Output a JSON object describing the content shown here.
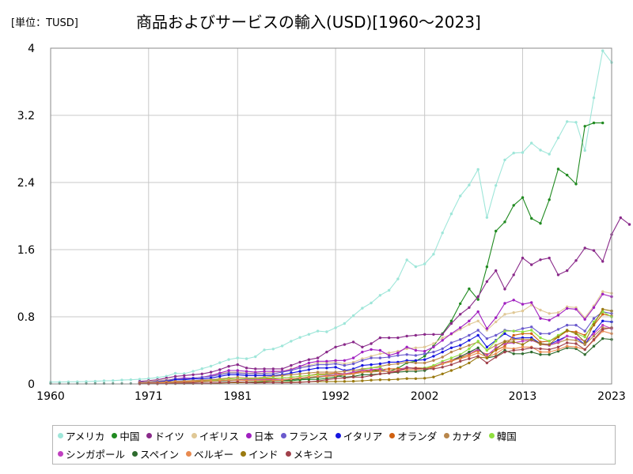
{
  "unit_label": "[単位：TUSD]",
  "chart_data": {
    "type": "line",
    "title": "商品およびサービスの輸入(USD)[1960～2023]",
    "xlabel": "",
    "ylabel": "",
    "xlim": [
      1960,
      2023
    ],
    "ylim": [
      0,
      4
    ],
    "x_ticks": [
      "1960",
      "1971",
      "1981",
      "1992",
      "2002",
      "2013",
      "2023"
    ],
    "y_ticks": [
      "0",
      "0.8",
      "1.6",
      "2.4",
      "3.2",
      "4"
    ],
    "grid": true,
    "legend_position": "bottom",
    "series": [
      {
        "name": "アメリカ",
        "color": "#9ee6d9",
        "start": 1960,
        "values": [
          0.023,
          0.023,
          0.025,
          0.026,
          0.028,
          0.032,
          0.038,
          0.04,
          0.046,
          0.05,
          0.056,
          0.064,
          0.076,
          0.092,
          0.127,
          0.122,
          0.151,
          0.182,
          0.212,
          0.253,
          0.291,
          0.31,
          0.3,
          0.325,
          0.406,
          0.416,
          0.453,
          0.509,
          0.554,
          0.591,
          0.63,
          0.621,
          0.669,
          0.72,
          0.813,
          0.903,
          0.965,
          1.056,
          1.115,
          1.251,
          1.478,
          1.397,
          1.43,
          1.545,
          1.8,
          2.026,
          2.239,
          2.37,
          2.555,
          1.983,
          2.364,
          2.669,
          2.751,
          2.757,
          2.87,
          2.786,
          2.738,
          2.931,
          3.126,
          3.117,
          2.781,
          3.409,
          3.97,
          3.83
        ]
      },
      {
        "name": "中国",
        "color": "#208a20",
        "start": 1982,
        "values": [
          0.02,
          0.023,
          0.028,
          0.036,
          0.04,
          0.038,
          0.049,
          0.054,
          0.055,
          0.066,
          0.083,
          0.11,
          0.12,
          0.138,
          0.15,
          0.159,
          0.15,
          0.187,
          0.25,
          0.272,
          0.331,
          0.45,
          0.6,
          0.75,
          0.956,
          1.133,
          1.006,
          1.396,
          1.821,
          1.93,
          2.128,
          2.22,
          1.972,
          1.913,
          2.195,
          2.56,
          2.488,
          2.382,
          3.07,
          3.11,
          3.11
        ]
      },
      {
        "name": "ドイツ",
        "color": "#8a2a8a",
        "start": 1970,
        "values": [
          0.03,
          0.04,
          0.05,
          0.07,
          0.09,
          0.1,
          0.11,
          0.12,
          0.14,
          0.17,
          0.21,
          0.23,
          0.19,
          0.18,
          0.18,
          0.18,
          0.18,
          0.22,
          0.26,
          0.29,
          0.31,
          0.38,
          0.44,
          0.47,
          0.5,
          0.44,
          0.48,
          0.55,
          0.55,
          0.55,
          0.57,
          0.58,
          0.59,
          0.59,
          0.59,
          0.72,
          0.83,
          0.91,
          1.04,
          1.22,
          1.35,
          1.13,
          1.3,
          1.5,
          1.42,
          1.48,
          1.5,
          1.3,
          1.35,
          1.47,
          1.62,
          1.59,
          1.46,
          1.78,
          1.98,
          1.9
        ]
      },
      {
        "name": "イギリス",
        "color": "#e0c896",
        "start": 1970,
        "values": [
          0.02,
          0.03,
          0.04,
          0.05,
          0.06,
          0.07,
          0.07,
          0.08,
          0.1,
          0.12,
          0.14,
          0.14,
          0.13,
          0.13,
          0.13,
          0.14,
          0.15,
          0.18,
          0.21,
          0.22,
          0.25,
          0.25,
          0.26,
          0.24,
          0.26,
          0.3,
          0.33,
          0.36,
          0.37,
          0.39,
          0.42,
          0.43,
          0.44,
          0.48,
          0.55,
          0.59,
          0.65,
          0.71,
          0.75,
          0.64,
          0.74,
          0.83,
          0.85,
          0.87,
          0.94,
          0.88,
          0.84,
          0.85,
          0.92,
          0.91,
          0.79,
          0.93,
          1.1,
          1.08
        ]
      },
      {
        "name": "日本",
        "color": "#a020c0",
        "start": 1970,
        "values": [
          0.02,
          0.02,
          0.03,
          0.04,
          0.06,
          0.07,
          0.07,
          0.08,
          0.1,
          0.13,
          0.16,
          0.16,
          0.15,
          0.14,
          0.15,
          0.15,
          0.15,
          0.17,
          0.21,
          0.25,
          0.27,
          0.27,
          0.28,
          0.28,
          0.31,
          0.38,
          0.41,
          0.4,
          0.34,
          0.37,
          0.44,
          0.4,
          0.39,
          0.44,
          0.52,
          0.6,
          0.67,
          0.75,
          0.86,
          0.66,
          0.79,
          0.96,
          1.0,
          0.95,
          0.97,
          0.78,
          0.76,
          0.82,
          0.9,
          0.89,
          0.77,
          0.91,
          1.07,
          1.04
        ]
      },
      {
        "name": "フランス",
        "color": "#6a5acd",
        "start": 1970,
        "values": [
          0.02,
          0.02,
          0.03,
          0.04,
          0.06,
          0.06,
          0.07,
          0.08,
          0.09,
          0.11,
          0.13,
          0.13,
          0.12,
          0.12,
          0.12,
          0.12,
          0.14,
          0.16,
          0.19,
          0.21,
          0.23,
          0.23,
          0.24,
          0.22,
          0.24,
          0.28,
          0.31,
          0.31,
          0.32,
          0.34,
          0.35,
          0.34,
          0.36,
          0.38,
          0.42,
          0.49,
          0.53,
          0.58,
          0.64,
          0.54,
          0.58,
          0.64,
          0.63,
          0.66,
          0.68,
          0.6,
          0.6,
          0.65,
          0.7,
          0.7,
          0.63,
          0.78,
          0.86,
          0.84
        ]
      },
      {
        "name": "イタリア",
        "color": "#1515e0",
        "start": 1970,
        "values": [
          0.015,
          0.018,
          0.022,
          0.03,
          0.05,
          0.05,
          0.06,
          0.06,
          0.07,
          0.09,
          0.11,
          0.11,
          0.1,
          0.1,
          0.1,
          0.1,
          0.11,
          0.13,
          0.15,
          0.17,
          0.19,
          0.19,
          0.2,
          0.16,
          0.18,
          0.22,
          0.23,
          0.24,
          0.26,
          0.26,
          0.28,
          0.28,
          0.29,
          0.33,
          0.38,
          0.43,
          0.46,
          0.52,
          0.58,
          0.44,
          0.52,
          0.6,
          0.54,
          0.55,
          0.55,
          0.48,
          0.47,
          0.52,
          0.57,
          0.55,
          0.47,
          0.62,
          0.75,
          0.74
        ]
      },
      {
        "name": "オランダ",
        "color": "#d06010",
        "start": 1970,
        "values": [
          0.01,
          0.012,
          0.015,
          0.02,
          0.03,
          0.03,
          0.035,
          0.04,
          0.045,
          0.05,
          0.06,
          0.06,
          0.06,
          0.06,
          0.06,
          0.06,
          0.07,
          0.08,
          0.09,
          0.1,
          0.12,
          0.12,
          0.13,
          0.12,
          0.13,
          0.15,
          0.16,
          0.17,
          0.18,
          0.18,
          0.19,
          0.19,
          0.19,
          0.21,
          0.24,
          0.27,
          0.31,
          0.35,
          0.4,
          0.35,
          0.4,
          0.45,
          0.58,
          0.6,
          0.6,
          0.5,
          0.51,
          0.56,
          0.63,
          0.62,
          0.58,
          0.7,
          0.83,
          0.81
        ]
      },
      {
        "name": "カナダ",
        "color": "#b8864b",
        "start": 1970,
        "values": [
          0.015,
          0.017,
          0.02,
          0.025,
          0.03,
          0.035,
          0.04,
          0.045,
          0.05,
          0.06,
          0.07,
          0.08,
          0.07,
          0.07,
          0.08,
          0.09,
          0.1,
          0.11,
          0.12,
          0.13,
          0.14,
          0.14,
          0.14,
          0.15,
          0.16,
          0.18,
          0.19,
          0.21,
          0.23,
          0.24,
          0.26,
          0.25,
          0.25,
          0.28,
          0.32,
          0.38,
          0.42,
          0.46,
          0.5,
          0.4,
          0.46,
          0.51,
          0.53,
          0.53,
          0.53,
          0.47,
          0.46,
          0.49,
          0.53,
          0.52,
          0.47,
          0.57,
          0.67,
          0.66
        ]
      },
      {
        "name": "韓国",
        "color": "#90e040",
        "start": 1970,
        "values": [
          0.005,
          0.007,
          0.008,
          0.01,
          0.015,
          0.02,
          0.025,
          0.03,
          0.04,
          0.05,
          0.06,
          0.06,
          0.06,
          0.06,
          0.07,
          0.07,
          0.07,
          0.08,
          0.09,
          0.1,
          0.11,
          0.11,
          0.11,
          0.12,
          0.14,
          0.17,
          0.19,
          0.2,
          0.13,
          0.16,
          0.2,
          0.18,
          0.19,
          0.22,
          0.27,
          0.31,
          0.35,
          0.42,
          0.51,
          0.4,
          0.51,
          0.63,
          0.63,
          0.62,
          0.64,
          0.55,
          0.51,
          0.58,
          0.64,
          0.6,
          0.56,
          0.74,
          0.86,
          0.8
        ]
      },
      {
        "name": "シンガポール",
        "color": "#c040c0",
        "start": 1970,
        "values": [
          0.005,
          0.006,
          0.007,
          0.01,
          0.015,
          0.02,
          0.02,
          0.025,
          0.03,
          0.035,
          0.04,
          0.05,
          0.05,
          0.05,
          0.05,
          0.05,
          0.05,
          0.06,
          0.07,
          0.08,
          0.09,
          0.1,
          0.11,
          0.12,
          0.14,
          0.16,
          0.17,
          0.18,
          0.14,
          0.16,
          0.2,
          0.18,
          0.18,
          0.2,
          0.25,
          0.28,
          0.33,
          0.37,
          0.41,
          0.34,
          0.43,
          0.48,
          0.49,
          0.51,
          0.52,
          0.48,
          0.46,
          0.5,
          0.57,
          0.55,
          0.51,
          0.6,
          0.7,
          0.66
        ]
      },
      {
        "name": "スペイン",
        "color": "#2e6b2e",
        "start": 1970,
        "values": [
          0.005,
          0.006,
          0.008,
          0.01,
          0.015,
          0.02,
          0.022,
          0.025,
          0.03,
          0.035,
          0.04,
          0.045,
          0.04,
          0.04,
          0.04,
          0.04,
          0.04,
          0.05,
          0.06,
          0.07,
          0.08,
          0.09,
          0.1,
          0.08,
          0.09,
          0.11,
          0.11,
          0.12,
          0.13,
          0.14,
          0.15,
          0.15,
          0.16,
          0.2,
          0.24,
          0.28,
          0.32,
          0.38,
          0.43,
          0.31,
          0.33,
          0.4,
          0.36,
          0.36,
          0.38,
          0.35,
          0.35,
          0.39,
          0.43,
          0.42,
          0.35,
          0.45,
          0.54,
          0.53
        ]
      },
      {
        "name": "ベルギー",
        "color": "#e88a50",
        "start": 1970,
        "values": [
          0.008,
          0.009,
          0.011,
          0.014,
          0.02,
          0.022,
          0.025,
          0.028,
          0.032,
          0.04,
          0.045,
          0.045,
          0.04,
          0.04,
          0.04,
          0.04,
          0.045,
          0.06,
          0.07,
          0.08,
          0.09,
          0.09,
          0.1,
          0.11,
          0.12,
          0.14,
          0.14,
          0.15,
          0.15,
          0.16,
          0.17,
          0.17,
          0.18,
          0.2,
          0.24,
          0.28,
          0.3,
          0.33,
          0.37,
          0.32,
          0.36,
          0.43,
          0.42,
          0.44,
          0.44,
          0.38,
          0.38,
          0.41,
          0.45,
          0.44,
          0.41,
          0.52,
          0.63,
          0.6
        ]
      },
      {
        "name": "インド",
        "color": "#9a7a10",
        "start": 1970,
        "values": [
          0.002,
          0.003,
          0.003,
          0.004,
          0.005,
          0.006,
          0.006,
          0.007,
          0.008,
          0.01,
          0.015,
          0.016,
          0.016,
          0.017,
          0.018,
          0.019,
          0.019,
          0.021,
          0.023,
          0.025,
          0.028,
          0.027,
          0.029,
          0.03,
          0.032,
          0.038,
          0.045,
          0.05,
          0.05,
          0.056,
          0.064,
          0.063,
          0.068,
          0.083,
          0.12,
          0.16,
          0.2,
          0.25,
          0.32,
          0.31,
          0.41,
          0.5,
          0.5,
          0.47,
          0.53,
          0.48,
          0.47,
          0.56,
          0.64,
          0.6,
          0.5,
          0.71,
          0.89,
          0.87
        ]
      },
      {
        "name": "メキシコ",
        "color": "#a0404a",
        "start": 1970,
        "values": [
          0.003,
          0.003,
          0.004,
          0.005,
          0.007,
          0.008,
          0.008,
          0.008,
          0.01,
          0.015,
          0.02,
          0.025,
          0.018,
          0.012,
          0.015,
          0.017,
          0.015,
          0.016,
          0.02,
          0.025,
          0.035,
          0.05,
          0.065,
          0.07,
          0.083,
          0.08,
          0.1,
          0.12,
          0.13,
          0.15,
          0.19,
          0.185,
          0.18,
          0.18,
          0.2,
          0.23,
          0.27,
          0.3,
          0.33,
          0.25,
          0.32,
          0.38,
          0.4,
          0.41,
          0.43,
          0.42,
          0.41,
          0.44,
          0.49,
          0.48,
          0.41,
          0.53,
          0.65,
          0.67
        ]
      }
    ]
  }
}
